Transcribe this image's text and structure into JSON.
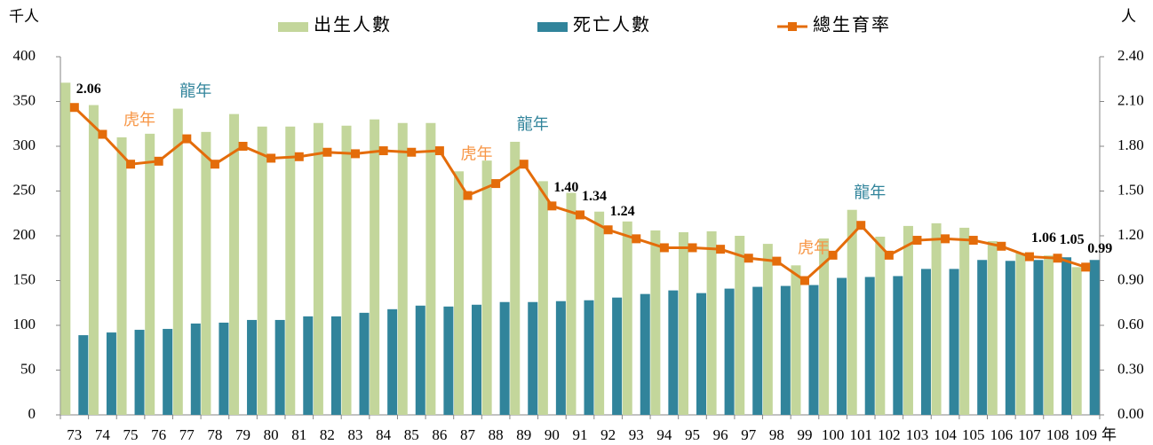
{
  "chart_data": {
    "type": "bar",
    "y_label": "千人",
    "y2_label": "人",
    "x_label": "年",
    "categories": [
      "73",
      "74",
      "75",
      "76",
      "77",
      "78",
      "79",
      "80",
      "81",
      "82",
      "83",
      "84",
      "85",
      "86",
      "87",
      "88",
      "89",
      "90",
      "91",
      "92",
      "93",
      "94",
      "95",
      "96",
      "97",
      "98",
      "99",
      "100",
      "101",
      "102",
      "103",
      "104",
      "105",
      "106",
      "107",
      "108",
      "109"
    ],
    "series": [
      {
        "name": "出生人數",
        "color": "#c3d69b",
        "values": [
          371,
          346,
          310,
          314,
          342,
          316,
          336,
          322,
          322,
          326,
          323,
          330,
          326,
          326,
          272,
          284,
          305,
          261,
          248,
          227,
          216,
          206,
          204,
          205,
          200,
          191,
          167,
          197,
          229,
          199,
          211,
          214,
          209,
          194,
          181,
          178,
          165
        ]
      },
      {
        "name": "死亡人數",
        "color": "#31849b",
        "values": [
          89,
          92,
          95,
          96,
          102,
          103,
          106,
          106,
          110,
          110,
          114,
          118,
          122,
          121,
          123,
          126,
          126,
          127,
          128,
          131,
          135,
          139,
          136,
          141,
          143,
          144,
          145,
          153,
          154,
          155,
          163,
          163,
          173,
          172,
          173,
          176,
          173
        ]
      },
      {
        "name": "總生育率",
        "color": "#e46c0a",
        "type": "line",
        "axis": "y2",
        "values": [
          2.06,
          1.88,
          1.68,
          1.7,
          1.85,
          1.68,
          1.8,
          1.72,
          1.73,
          1.76,
          1.75,
          1.77,
          1.76,
          1.77,
          1.47,
          1.55,
          1.68,
          1.4,
          1.34,
          1.24,
          1.18,
          1.12,
          1.12,
          1.11,
          1.05,
          1.03,
          0.9,
          1.07,
          1.27,
          1.07,
          1.17,
          1.18,
          1.17,
          1.13,
          1.06,
          1.05,
          0.99
        ],
        "value_labels": [
          "2.06",
          null,
          null,
          null,
          null,
          null,
          null,
          null,
          null,
          null,
          null,
          null,
          null,
          null,
          null,
          null,
          null,
          "1.40",
          "1.34",
          "1.24",
          null,
          null,
          null,
          null,
          null,
          null,
          null,
          null,
          null,
          null,
          null,
          null,
          null,
          null,
          "1.06",
          "1.05",
          "0.99"
        ]
      }
    ],
    "annotations": [
      {
        "text": "虎年",
        "category": "75",
        "color": "#f79646"
      },
      {
        "text": "龍年",
        "category": "77",
        "color": "#31849b"
      },
      {
        "text": "虎年",
        "category": "87",
        "color": "#f79646"
      },
      {
        "text": "龍年",
        "category": "89",
        "color": "#31849b"
      },
      {
        "text": "虎年",
        "category": "99",
        "color": "#f79646"
      },
      {
        "text": "龍年",
        "category": "101",
        "color": "#31849b"
      }
    ],
    "ylim": [
      0,
      400
    ],
    "yticks": [
      0,
      50,
      100,
      150,
      200,
      250,
      300,
      350,
      400
    ],
    "y2lim": [
      0,
      2.4
    ],
    "y2ticks": [
      {
        "value": 0,
        "label": "0.00"
      },
      {
        "value": 0.3,
        "label": "0.30"
      },
      {
        "value": 0.6,
        "label": "0.60"
      },
      {
        "value": 0.9,
        "label": "0.90"
      },
      {
        "value": 1.2,
        "label": "1.20"
      },
      {
        "value": 1.5,
        "label": "1.50"
      },
      {
        "value": 1.8,
        "label": "1.80"
      },
      {
        "value": 2.1,
        "label": "2.10"
      },
      {
        "value": 2.4,
        "label": "2.40"
      }
    ],
    "legend": "top"
  }
}
